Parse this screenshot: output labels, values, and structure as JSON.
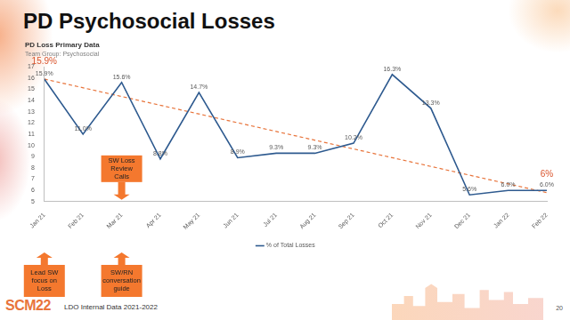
{
  "slide": {
    "title": "PD Psychosocial Losses",
    "source": "LDO Internal Data 2021-2022",
    "logo": "SCM22",
    "page": 20
  },
  "chart_data": {
    "type": "line",
    "title": "PD Loss Primary Data",
    "subtitle": "Team Group: Psychosocial",
    "categories": [
      "Jan 21",
      "Feb 21",
      "Mar 21",
      "Apr 21",
      "May 21",
      "Jun 21",
      "Jul 21",
      "Aug 21",
      "Sep 21",
      "Oct 21",
      "Nov 21",
      "Dec 21",
      "Jan 22",
      "Feb 22"
    ],
    "series": [
      {
        "name": "% of Total Losses",
        "color": "#2e5a8f",
        "marker": "none",
        "values": [
          15.9,
          11.0,
          15.6,
          8.8,
          14.7,
          8.9,
          9.3,
          9.3,
          10.2,
          16.3,
          13.3,
          5.6,
          6.0,
          6.0
        ],
        "value_labels": [
          "15.9%",
          "11.0%",
          "15.6%",
          "8.8%",
          "14.7%",
          "8.9%",
          "9.3%",
          "9.3%",
          "10.2%",
          "16.3%",
          "13.3%",
          "5.6%",
          "6.0%",
          "6.0%"
        ]
      },
      {
        "color": "#e8743b",
        "line_style": "dashed",
        "marker": "none",
        "values": [
          15.9,
          null,
          null,
          null,
          null,
          null,
          null,
          null,
          null,
          null,
          null,
          null,
          null,
          5.8
        ],
        "value_labels": [
          "15.9%",
          null,
          null,
          null,
          null,
          null,
          null,
          null,
          null,
          null,
          null,
          null,
          null,
          "6%"
        ]
      }
    ],
    "ylim": [
      5,
      17
    ],
    "yticks": [
      5,
      6,
      7,
      8,
      9,
      10,
      11,
      12,
      13,
      14,
      15,
      16,
      17
    ],
    "grid": false,
    "legend": "bottom",
    "data_labels": true,
    "annotations": [
      {
        "text": "SW Loss Review Calls",
        "category": "Mar 21"
      },
      {
        "text": "Lead SW focus on Loss",
        "category": "Jan 21"
      },
      {
        "text": "SW/RN conversation guide",
        "category": "Mar 21"
      }
    ]
  }
}
